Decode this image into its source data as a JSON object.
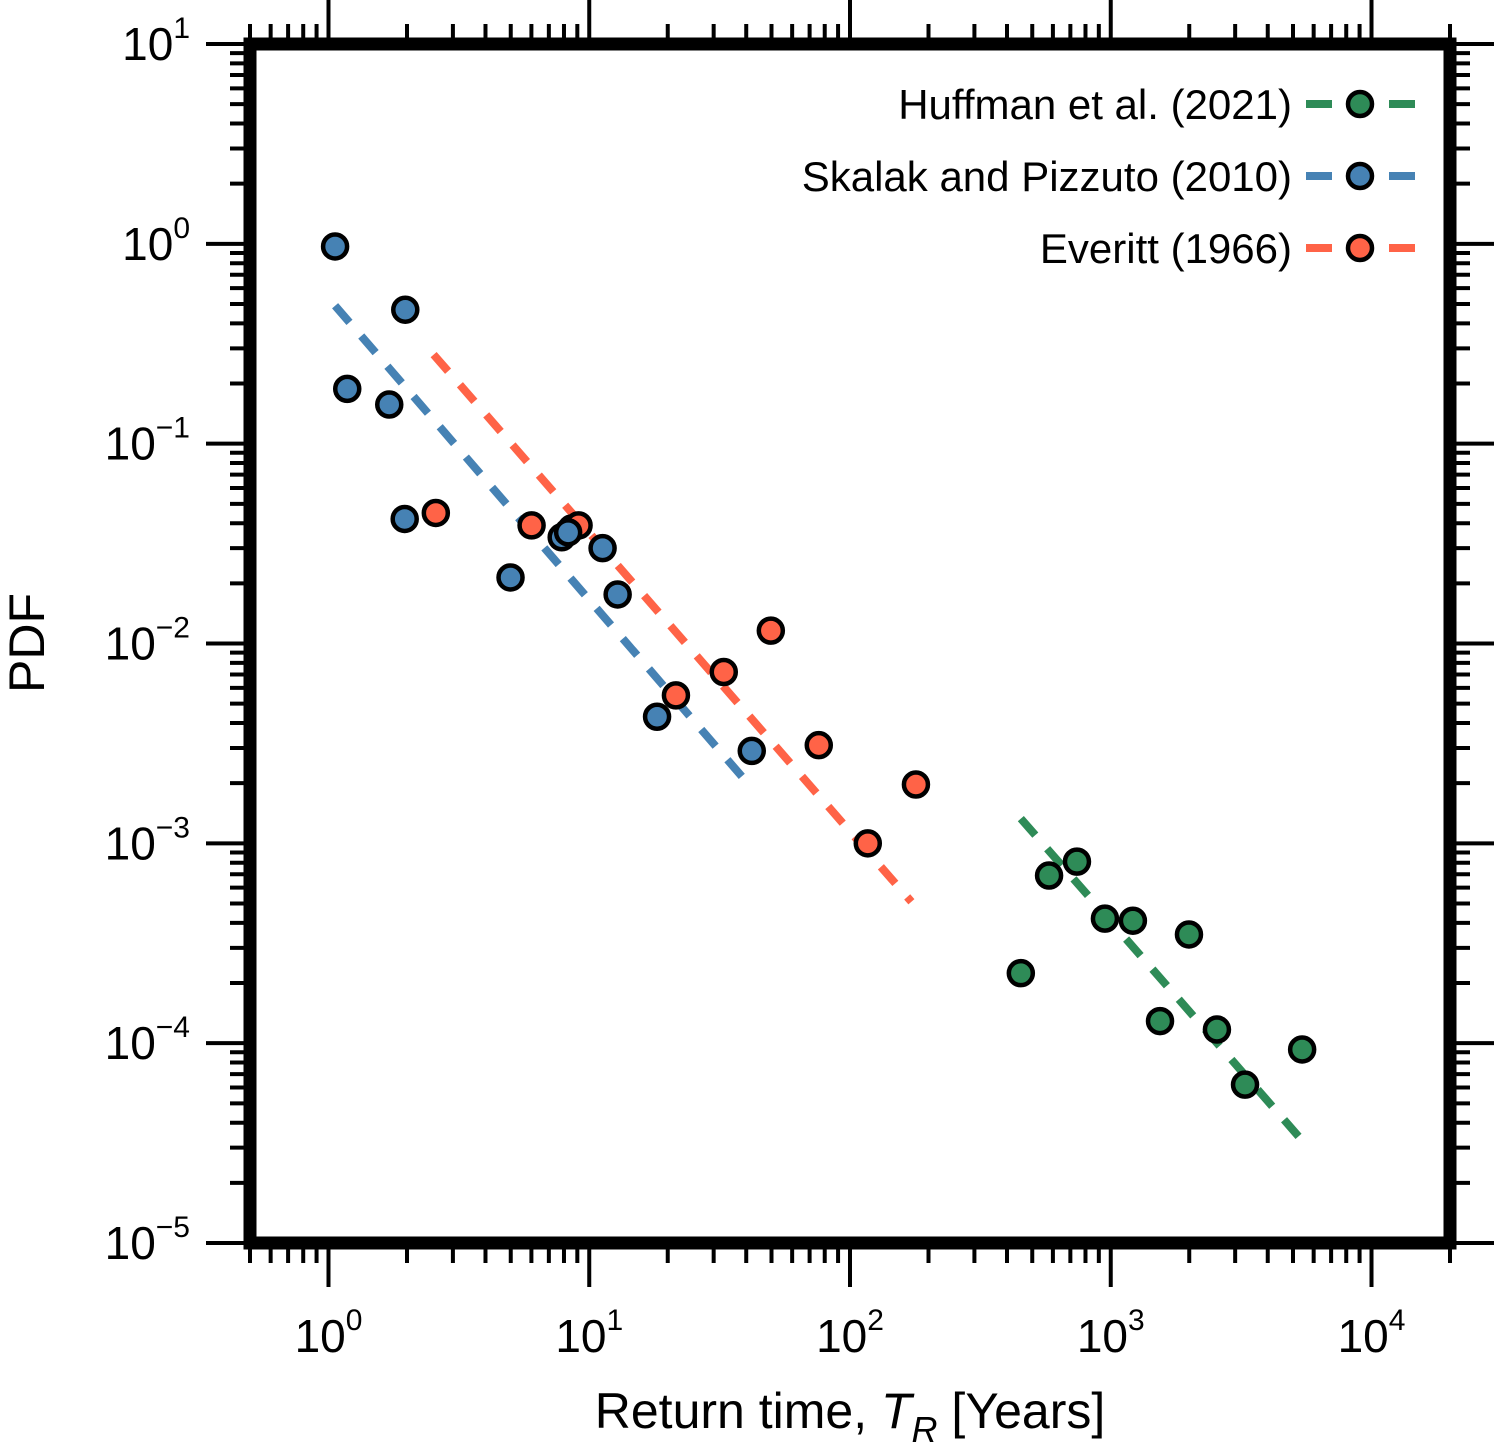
{
  "chart_data": {
    "type": "scatter",
    "title": "",
    "xlabel": "Return time, ",
    "xlabel_math": "T",
    "xlabel_sub": "R",
    "xlabel_unit": " [Years]",
    "ylabel": "PDF",
    "xscale": "log",
    "yscale": "log",
    "xlim": [
      0.5,
      20000
    ],
    "ylim": [
      1e-05,
      10
    ],
    "grid": false,
    "legend_position": "top-right",
    "x_ticks": [
      {
        "value": 1,
        "base": "10",
        "exp": "0"
      },
      {
        "value": 10,
        "base": "10",
        "exp": "1"
      },
      {
        "value": 100,
        "base": "10",
        "exp": "2"
      },
      {
        "value": 1000,
        "base": "10",
        "exp": "3"
      },
      {
        "value": 10000,
        "base": "10",
        "exp": "4"
      }
    ],
    "y_ticks": [
      {
        "value": 10,
        "base": "10",
        "exp": "1"
      },
      {
        "value": 1,
        "base": "10",
        "exp": "0"
      },
      {
        "value": 0.1,
        "base": "10",
        "exp": "−1"
      },
      {
        "value": 0.01,
        "base": "10",
        "exp": "−2"
      },
      {
        "value": 0.001,
        "base": "10",
        "exp": "−3"
      },
      {
        "value": 0.0001,
        "base": "10",
        "exp": "−4"
      },
      {
        "value": 1e-05,
        "base": "10",
        "exp": "−5"
      }
    ],
    "series": [
      {
        "name": "Huffman et al. (2021)",
        "color": "#2e8b57",
        "points": [
          [
            452,
            0.000224
          ],
          [
            580,
            0.00069
          ],
          [
            742,
            0.00081
          ],
          [
            950,
            0.00042
          ],
          [
            1216,
            0.00041
          ],
          [
            1545,
            0.000129
          ],
          [
            1995,
            0.00035
          ],
          [
            2554,
            0.000117
          ],
          [
            3273,
            6.2e-05
          ],
          [
            5420,
            9.3e-05
          ]
        ],
        "fit_line": [
          [
            452,
            0.00133
          ],
          [
            5320,
            3.35e-05
          ]
        ]
      },
      {
        "name": "Skalak and Pizzuto (2010)",
        "color": "#4682b4",
        "points": [
          [
            1.06,
            0.97
          ],
          [
            1.97,
            0.468
          ],
          [
            1.18,
            0.188
          ],
          [
            1.71,
            0.157
          ],
          [
            1.96,
            0.042
          ],
          [
            4.99,
            0.0214
          ],
          [
            7.84,
            0.034
          ],
          [
            8.3,
            0.036
          ],
          [
            11.25,
            0.03
          ],
          [
            12.85,
            0.0176
          ],
          [
            18.2,
            0.0043
          ],
          [
            42.0,
            0.0029
          ]
        ],
        "fit_line": [
          [
            1.06,
            0.49
          ],
          [
            38.5,
            0.00216
          ]
        ]
      },
      {
        "name": "Everitt (1966)",
        "color": "#ff6347",
        "points": [
          [
            2.58,
            0.045
          ],
          [
            6.01,
            0.039
          ],
          [
            8.56,
            0.0376
          ],
          [
            9.1,
            0.039
          ],
          [
            21.5,
            0.0055
          ],
          [
            32.8,
            0.0072
          ],
          [
            49.7,
            0.0116
          ],
          [
            75.9,
            0.0031
          ],
          [
            117,
            0.001
          ],
          [
            179,
            0.00197
          ]
        ],
        "fit_line": [
          [
            2.53,
            0.279
          ],
          [
            172,
            0.00051
          ]
        ]
      }
    ]
  }
}
